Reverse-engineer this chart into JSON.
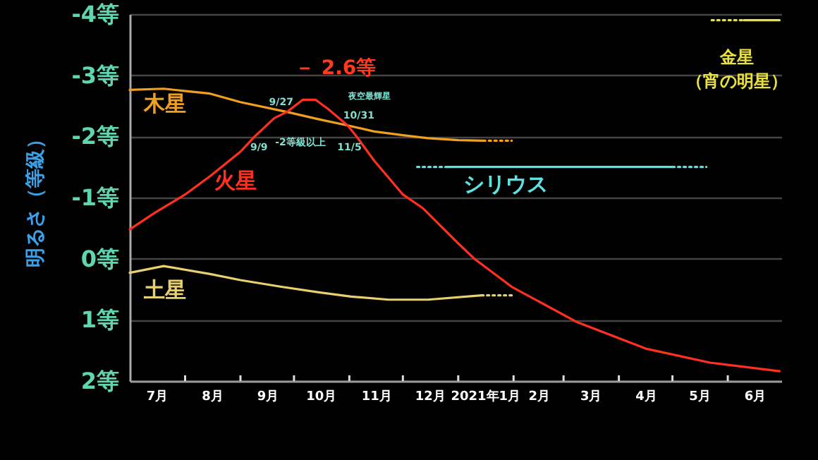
{
  "chart_data": {
    "type": "line",
    "ylabel": "明るさ（等級）",
    "xlim": [
      "2020-07-01",
      "2021-07-01"
    ],
    "ylim": [
      2,
      -4
    ],
    "yticks": [
      {
        "value": -4,
        "label": "-4等"
      },
      {
        "value": -3,
        "label": "-3等"
      },
      {
        "value": -2,
        "label": "-2等"
      },
      {
        "value": -1,
        "label": "-1等"
      },
      {
        "value": 0,
        "label": "0等"
      },
      {
        "value": 1,
        "label": "1等"
      },
      {
        "value": 2,
        "label": "2等"
      }
    ],
    "xticks": [
      {
        "value": "2020-07-16",
        "label": "7月"
      },
      {
        "value": "2020-08-01",
        "label": null
      },
      {
        "value": "2020-08-16",
        "label": "8月"
      },
      {
        "value": "2020-09-01",
        "label": null
      },
      {
        "value": "2020-09-16",
        "label": "9月"
      },
      {
        "value": "2020-10-01",
        "label": null
      },
      {
        "value": "2020-10-16",
        "label": "10月"
      },
      {
        "value": "2020-11-01",
        "label": null
      },
      {
        "value": "2020-11-16",
        "label": "11月"
      },
      {
        "value": "2020-12-01",
        "label": null
      },
      {
        "value": "2020-12-16",
        "label": "12月"
      },
      {
        "value": "2021-01-01",
        "label": null
      },
      {
        "value": "2021-01-16",
        "label": "2021年1月"
      },
      {
        "value": "2021-02-01",
        "label": null
      },
      {
        "value": "2021-02-15",
        "label": "2月"
      },
      {
        "value": "2021-03-01",
        "label": null
      },
      {
        "value": "2021-03-16",
        "label": "3月"
      },
      {
        "value": "2021-04-01",
        "label": null
      },
      {
        "value": "2021-04-16",
        "label": "4月"
      },
      {
        "value": "2021-05-01",
        "label": null
      },
      {
        "value": "2021-05-16",
        "label": "5月"
      },
      {
        "value": "2021-06-01",
        "label": null
      },
      {
        "value": "2021-06-16",
        "label": "6月"
      }
    ],
    "grid": "y",
    "marker": "none",
    "line_style": "solid",
    "series": [
      {
        "name": "木星",
        "color": "#f0a020",
        "x": [
          "2020-07-01",
          "2020-07-20",
          "2020-08-15",
          "2020-09-01",
          "2020-09-27",
          "2020-10-15",
          "2020-10-31",
          "2020-11-15",
          "2020-12-01",
          "2020-12-15",
          "2021-01-01",
          "2021-01-15"
        ],
        "values": [
          -2.76,
          -2.78,
          -2.7,
          -2.56,
          -2.4,
          -2.28,
          -2.18,
          -2.08,
          -2.02,
          -1.97,
          -1.94,
          -1.93
        ]
      },
      {
        "color": "#f0a020",
        "line_style": "dotted",
        "x": [
          "2021-01-15",
          "2021-01-31"
        ],
        "values": [
          -1.93,
          -1.93
        ]
      },
      {
        "name": "火星",
        "color": "#ff3020",
        "x": [
          "2020-07-01",
          "2020-07-15",
          "2020-08-01",
          "2020-08-15",
          "2020-09-01",
          "2020-09-09",
          "2020-09-20",
          "2020-09-27",
          "2020-10-06",
          "2020-10-13",
          "2020-10-20",
          "2020-10-31",
          "2020-11-05",
          "2020-11-15",
          "2020-12-01",
          "2020-12-12",
          "2021-01-01",
          "2021-01-10",
          "2021-01-31",
          "2021-03-08",
          "2021-04-16",
          "2021-05-22",
          "2021-06-30"
        ],
        "values": [
          -0.48,
          -0.75,
          -1.05,
          -1.35,
          -1.75,
          -2.0,
          -2.3,
          -2.4,
          -2.6,
          -2.6,
          -2.45,
          -2.18,
          -2.0,
          -1.6,
          -1.05,
          -0.83,
          -0.25,
          0,
          0.46,
          1.03,
          1.47,
          1.7,
          1.84
        ]
      },
      {
        "name": "土星",
        "color": "#e8d070",
        "x": [
          "2020-07-01",
          "2020-07-20",
          "2020-08-15",
          "2020-09-01",
          "2020-09-24",
          "2020-10-15",
          "2020-11-02",
          "2020-11-23",
          "2020-12-15",
          "2021-01-14"
        ],
        "values": [
          0.23,
          0.12,
          0.25,
          0.35,
          0.46,
          0.55,
          0.62,
          0.67,
          0.67,
          0.6
        ]
      },
      {
        "color": "#e8d070",
        "line_style": "dotted",
        "x": [
          "2021-01-14",
          "2021-01-31"
        ],
        "values": [
          0.6,
          0.6
        ]
      },
      {
        "name": "シリウス",
        "color": "#60e0e0",
        "x": [
          "2020-12-26",
          "2021-05-01"
        ],
        "values": [
          -1.5,
          -1.5
        ]
      },
      {
        "color": "#60e0e0",
        "line_style": "dotted",
        "x": [
          "2020-12-09",
          "2020-12-26"
        ],
        "values": [
          -1.5,
          -1.5
        ]
      },
      {
        "color": "#60e0e0",
        "line_style": "dotted",
        "x": [
          "2021-05-01",
          "2021-05-20"
        ],
        "values": [
          -1.5,
          -1.5
        ]
      },
      {
        "name": "金星（宵の明星）",
        "color": "#e8e040",
        "x": [
          "2021-06-10",
          "2021-06-30"
        ],
        "values": [
          -3.9,
          -3.9
        ]
      },
      {
        "color": "#e8e040",
        "line_style": "dotted",
        "x": [
          "2021-05-23",
          "2021-06-10"
        ],
        "values": [
          -3.9,
          -3.9
        ]
      }
    ],
    "annotations": [
      {
        "text": "－ 2.6等",
        "x": "2020-10-10",
        "y": -2.6
      },
      {
        "text": "9/27",
        "x": "2020-09-27",
        "y": -2.4
      },
      {
        "text": "10/31",
        "x": "2020-10-31",
        "y": -2.18
      },
      {
        "text": "9/9",
        "x": "2020-09-09",
        "y": -2
      },
      {
        "text": "11/5",
        "x": "2020-11-05",
        "y": -2
      },
      "-2等級以上",
      "夜空最輝星"
    ]
  }
}
